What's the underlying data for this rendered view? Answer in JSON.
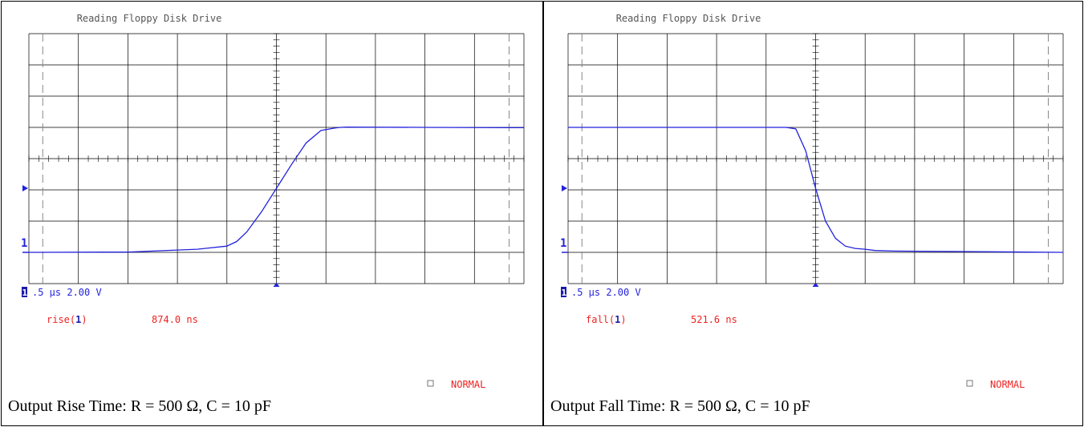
{
  "chart_data": [
    {
      "type": "line",
      "title": "Reading Floppy Disk Drive",
      "caption": "Output Rise Time: R = 500 Ω, C = 10 pF",
      "channel_marker": "1",
      "scale_text": ".5 μs 2.00 V",
      "measurement": {
        "prefix": "rise(",
        "channel": "1",
        "suffix": ")",
        "value": "874.0 ns"
      },
      "mode": "NORMAL",
      "colors": {
        "trace": "#2222dd",
        "measure": "#ee2222",
        "grid": "#000000"
      },
      "grid": {
        "x_divisions": 10,
        "y_divisions": 8,
        "center_ticks": true
      },
      "x_unit": "μs",
      "x_per_div": 0.5,
      "xlim": [
        -2.5,
        2.5
      ],
      "y_unit": "V",
      "y_per_div": 2.0,
      "ylim": [
        -2,
        14
      ],
      "series": [
        {
          "x": [
            -2.5,
            -1.5,
            -0.8,
            -0.5,
            -0.4,
            -0.3,
            -0.15,
            0.0,
            0.15,
            0.3,
            0.45,
            0.6,
            0.65,
            0.7,
            1.5,
            2.5
          ],
          "y": [
            0.0,
            0.02,
            0.2,
            0.4,
            0.7,
            1.3,
            2.6,
            4.1,
            5.6,
            7.0,
            7.8,
            7.97,
            8.0,
            8.02,
            8.0,
            7.98
          ]
        }
      ]
    },
    {
      "type": "line",
      "title": "Reading Floppy Disk Drive",
      "caption": "Output Fall Time: R = 500 Ω,  C = 10 pF",
      "channel_marker": "1",
      "scale_text": ".5 μs 2.00 V",
      "measurement": {
        "prefix": "fall(",
        "channel": "1",
        "suffix": ")",
        "value": "521.6 ns"
      },
      "mode": "NORMAL",
      "colors": {
        "trace": "#2222dd",
        "measure": "#ee2222",
        "grid": "#000000"
      },
      "grid": {
        "x_divisions": 10,
        "y_divisions": 8,
        "center_ticks": true
      },
      "x_unit": "μs",
      "x_per_div": 0.5,
      "xlim": [
        -2.5,
        2.5
      ],
      "y_unit": "V",
      "y_per_div": 2.0,
      "ylim": [
        -2,
        14
      ],
      "series": [
        {
          "x": [
            -2.5,
            -1.5,
            -0.7,
            -0.3,
            -0.2,
            -0.1,
            0.0,
            0.1,
            0.2,
            0.3,
            0.4,
            0.5,
            0.6,
            0.8,
            1.5,
            2.5
          ],
          "y": [
            8.0,
            8.0,
            8.0,
            8.0,
            7.9,
            6.5,
            4.1,
            2.0,
            0.9,
            0.4,
            0.25,
            0.2,
            0.12,
            0.08,
            0.05,
            0.0
          ]
        }
      ]
    }
  ]
}
